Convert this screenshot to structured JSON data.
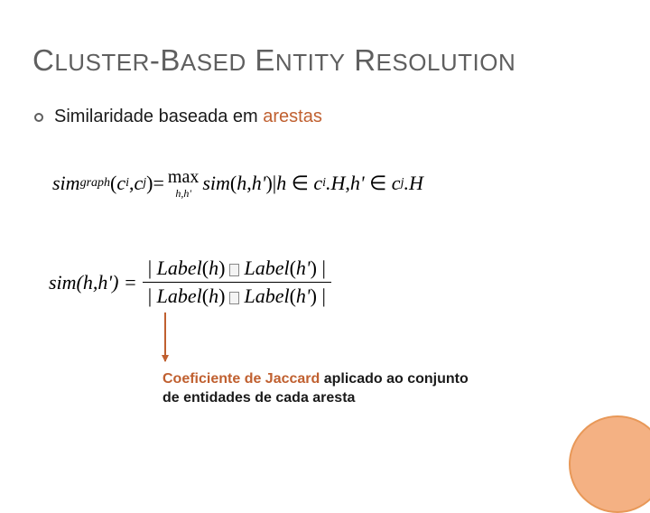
{
  "title": {
    "parts": [
      "C",
      "LUSTER",
      "-B",
      "ASED",
      " E",
      "NTITY",
      " R",
      "ESOLUTION"
    ]
  },
  "bullet": {
    "prefix": "Similaridade baseada em ",
    "accent": "arestas"
  },
  "formula1": {
    "lhs_name": "sim",
    "lhs_sub": "graph",
    "arg_open": "(",
    "c": "c",
    "i": "i",
    "comma": ",",
    "j": "j",
    "arg_close": ")",
    "eq": " = ",
    "max": "max",
    "max_sub": "h,h'",
    "rhs_name": "sim",
    "h": "h",
    "hp": "h'",
    "bar": " | ",
    "in": "∈",
    "dotH": ".H"
  },
  "formula2": {
    "lhs": "sim(h,h') = ",
    "label": "Label",
    "h": "h",
    "hp": "h'"
  },
  "caption": {
    "accent": "Coeficiente de Jaccard",
    "rest": " aplicado ao conjunto de entidades de cada aresta"
  },
  "colors": {
    "accent": "#c06030",
    "title": "#5f5f5f",
    "circle_fill": "#f4b183",
    "circle_border": "#e89858"
  }
}
